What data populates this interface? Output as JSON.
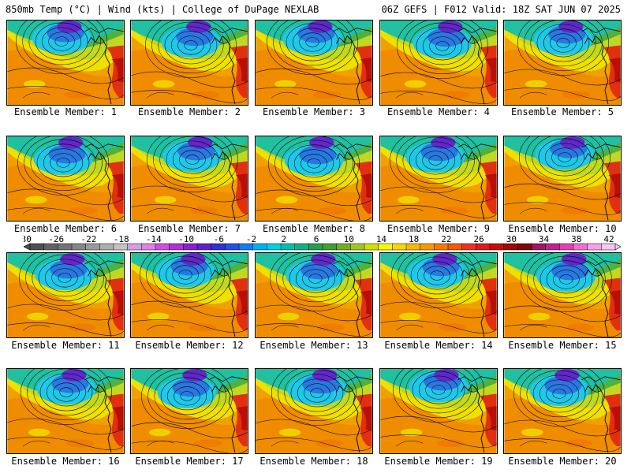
{
  "header": {
    "title_left": "850mb Temp (°C) | Wind (kts) | College of DuPage NEXLAB",
    "title_right": "06Z GEFS | F012 Valid: 18Z SAT JUN 07 2025"
  },
  "member_prefix": "Ensemble Member:",
  "members": [
    "Ensemble Member: 1",
    "Ensemble Member: 2",
    "Ensemble Member: 3",
    "Ensemble Member: 4",
    "Ensemble Member: 5",
    "Ensemble Member: 6",
    "Ensemble Member: 7",
    "Ensemble Member: 8",
    "Ensemble Member: 9",
    "Ensemble Member: 10",
    "Ensemble Member: 11",
    "Ensemble Member: 12",
    "Ensemble Member: 13",
    "Ensemble Member: 14",
    "Ensemble Member: 15",
    "Ensemble Member: 16",
    "Ensemble Member: 17",
    "Ensemble Member: 18",
    "Ensemble Member: 19",
    "Ensemble Member: 20"
  ],
  "colorbar": {
    "labels": [
      "-30",
      "-26",
      "-22",
      "-18",
      "-14",
      "-10",
      "-6",
      "-2",
      "2",
      "6",
      "10",
      "14",
      "18",
      "22",
      "26",
      "30",
      "34",
      "38",
      "42"
    ],
    "colors": [
      "#505050",
      "#626262",
      "#747474",
      "#868686",
      "#9a9a9a",
      "#aeaeae",
      "#c4c4c4",
      "#d0a0e0",
      "#e080e8",
      "#d050e0",
      "#b030d8",
      "#8a20d0",
      "#6020c8",
      "#3030d8",
      "#2050e8",
      "#1080f0",
      "#00b0f0",
      "#00d0e0",
      "#00c0b0",
      "#10b080",
      "#20a050",
      "#40a030",
      "#70b020",
      "#a0c820",
      "#d0e000",
      "#f8f800",
      "#f8d800",
      "#f8b800",
      "#f89800",
      "#f87800",
      "#f85800",
      "#f03020",
      "#e01818",
      "#c80c0c",
      "#a00808",
      "#800808",
      "#a01860",
      "#c02090",
      "#e040b0",
      "#f070d0",
      "#f8a0e8",
      "#f8c8f0"
    ]
  },
  "palette": {
    "cold_purple": "#6028c8",
    "blue": "#2878e0",
    "cyan": "#20c8e8",
    "teal": "#20c0a0",
    "green": "#50b040",
    "yellow_green": "#c0d820",
    "yellow": "#f0e000",
    "orange": "#f0a000",
    "dark_orange": "#f07800",
    "red": "#e03010",
    "deep_red": "#b81008"
  }
}
